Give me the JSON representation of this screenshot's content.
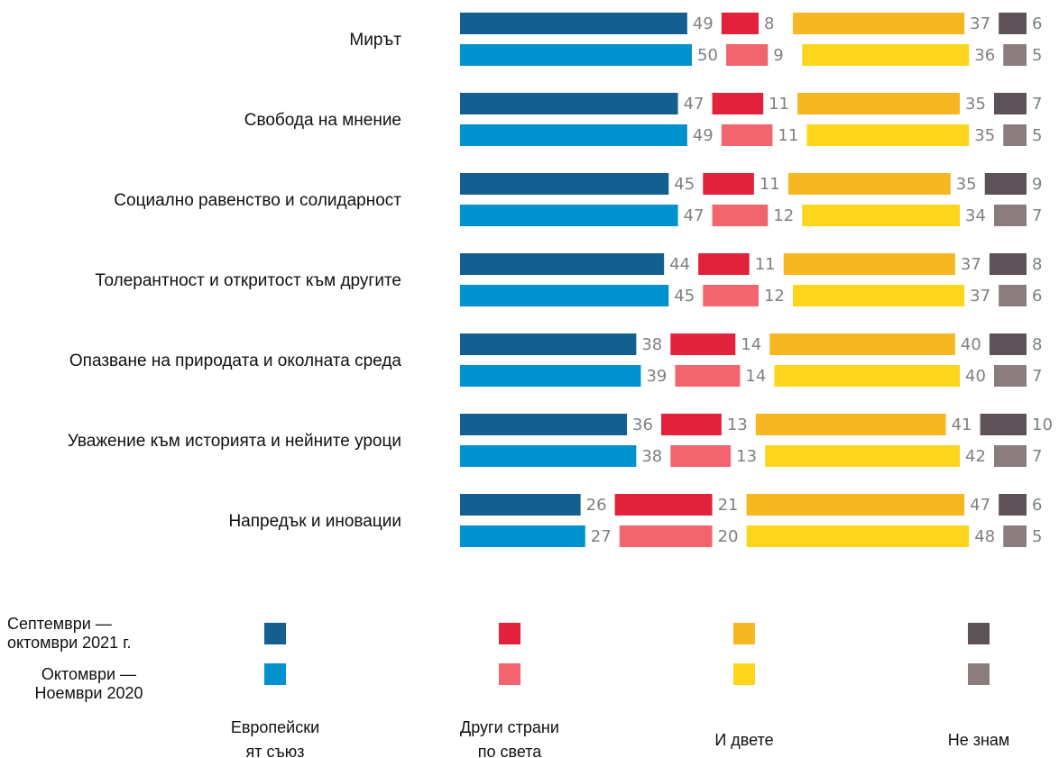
{
  "chart_data": {
    "type": "grouped-stacked-bar",
    "categories": [
      "Мирът",
      "Свобода на мнение",
      "Социално равенство и солидарност",
      "Толерантност и откритост към другите",
      "Опазване на природата и околната среда",
      "Уважение към историята и нейните уроци",
      "Напредък и иновации"
    ],
    "periods": [
      "Септември — октомври 2021 г.",
      "Октомври — Ноември 2020"
    ],
    "series": [
      {
        "name": "Европейски\nят съюз",
        "colors": [
          "#135f8f",
          "#0091cf"
        ],
        "values": [
          [
            49,
            50
          ],
          [
            47,
            49
          ],
          [
            45,
            47
          ],
          [
            44,
            45
          ],
          [
            38,
            39
          ],
          [
            36,
            38
          ],
          [
            26,
            27
          ]
        ]
      },
      {
        "name": "Други страни\nпо света",
        "colors": [
          "#e2213a",
          "#f2646e"
        ],
        "values": [
          [
            8,
            9
          ],
          [
            11,
            11
          ],
          [
            11,
            12
          ],
          [
            11,
            12
          ],
          [
            14,
            14
          ],
          [
            13,
            13
          ],
          [
            21,
            20
          ]
        ]
      },
      {
        "name": "И двете",
        "colors": [
          "#f6b723",
          "#fdd61b"
        ],
        "values": [
          [
            37,
            36
          ],
          [
            35,
            35
          ],
          [
            35,
            34
          ],
          [
            37,
            37
          ],
          [
            40,
            40
          ],
          [
            41,
            42
          ],
          [
            47,
            48
          ]
        ]
      },
      {
        "name": "Не знам",
        "colors": [
          "#5e5259",
          "#8b7c7e"
        ],
        "values": [
          [
            6,
            5
          ],
          [
            7,
            5
          ],
          [
            9,
            7
          ],
          [
            8,
            6
          ],
          [
            8,
            7
          ],
          [
            10,
            7
          ],
          [
            6,
            5
          ]
        ]
      }
    ]
  }
}
